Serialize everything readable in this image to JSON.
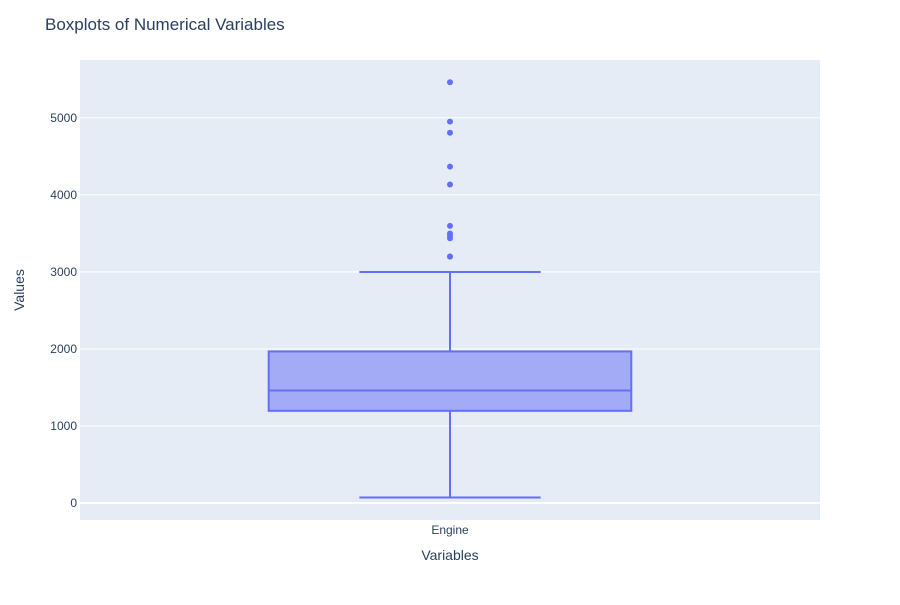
{
  "chart_data": {
    "type": "box",
    "title": "Boxplots of Numerical Variables",
    "xlabel": "Variables",
    "ylabel": "Values",
    "ylim": [
      -220,
      5750
    ],
    "yticks": [
      0,
      1000,
      2000,
      3000,
      4000,
      5000
    ],
    "grid": true,
    "legend": "none",
    "categories": [
      "Engine"
    ],
    "series": [
      {
        "category": "Engine",
        "lower_fence": 72,
        "q1": 1197,
        "median": 1461,
        "q3": 1968,
        "upper_fence": 2999,
        "outliers": [
          3198,
          3200,
          3436,
          3470,
          3498,
          3597,
          4134,
          4367,
          4806,
          4951,
          5461
        ],
        "color": "#636efa",
        "fill": "#a3aaf6"
      }
    ],
    "colors": {
      "plot_bg": "#e5ecf6",
      "grid": "#ffffff",
      "title": "#2a3f5f",
      "tick": "#2a3f5f"
    }
  }
}
